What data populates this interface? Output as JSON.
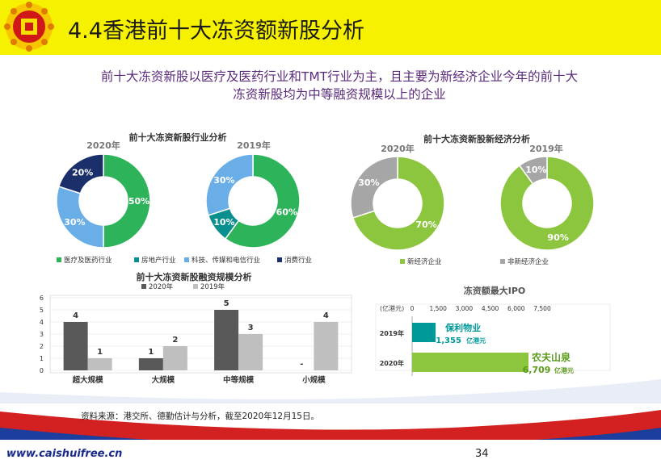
{
  "slide": {
    "title": "4.4香港前十大冻资额新股分析",
    "subtitle_line1": "前十大冻资新股以医疗及医药行业和TMT行业为主，且主要为新经济企业今年的前十大",
    "subtitle_line2": "冻资新股均为中等融资规模以上的企业",
    "source": "资料来源：港交所、德勤估计与分析，截至2020年12月15日。",
    "url": "www.caishuifree.cn",
    "page_number": "34"
  },
  "chart_data": [
    {
      "type": "pie",
      "title": "前十大冻资新股行业分析",
      "panels": [
        {
          "label": "2020年",
          "values": [
            50,
            0,
            30,
            20
          ],
          "data_labels": [
            "50%",
            "",
            "30%",
            "20%"
          ]
        },
        {
          "label": "2019年",
          "values": [
            60,
            10,
            30,
            0
          ],
          "data_labels": [
            "60%",
            "10%",
            "30%",
            ""
          ]
        }
      ],
      "categories": [
        "医疗及医药行业",
        "房地产行业",
        "科技、传媒和电信行业",
        "消费行业"
      ],
      "colors": [
        "#2db35a",
        "#0a8f8f",
        "#6aaee8",
        "#1b2f6a"
      ],
      "legend_position": "bottom"
    },
    {
      "type": "pie",
      "title": "前十大冻资新股新经济分析",
      "panels": [
        {
          "label": "2020年",
          "values": [
            70,
            30
          ],
          "data_labels": [
            "70%",
            "30%"
          ]
        },
        {
          "label": "2019年",
          "values": [
            90,
            10
          ],
          "data_labels": [
            "90%",
            "10%"
          ]
        }
      ],
      "categories": [
        "新经济企业",
        "非新经济企业"
      ],
      "colors": [
        "#8cc63f",
        "#a6a6a6"
      ],
      "legend_position": "bottom"
    },
    {
      "type": "bar",
      "title": "前十大冻资新股融资规模分析",
      "categories": [
        "超大规模",
        "大规模",
        "中等规模",
        "小规模"
      ],
      "series": [
        {
          "name": "2020年",
          "values": [
            4,
            1,
            5,
            0
          ],
          "data_labels": [
            "4",
            "1",
            "5",
            "-"
          ],
          "color": "#595959"
        },
        {
          "name": "2019年",
          "values": [
            1,
            2,
            3,
            4
          ],
          "data_labels": [
            "1",
            "2",
            "3",
            "4"
          ],
          "color": "#bfbfbf"
        }
      ],
      "y_ticks": [
        "0",
        "1",
        "2",
        "3",
        "4",
        "5",
        "6"
      ],
      "ylim": [
        0,
        6
      ],
      "legend_position": "top"
    },
    {
      "type": "bar",
      "orientation": "horizontal",
      "title": "冻资额最大IPO",
      "unit_label": "(亿港元)",
      "x_ticks": [
        "0",
        "1,500",
        "3,000",
        "4,500",
        "6,000",
        "7,500"
      ],
      "xlim": [
        0,
        7500
      ],
      "categories": [
        "2019年",
        "2020年"
      ],
      "values": [
        1355,
        6709
      ],
      "company_labels": [
        "保利物业",
        "农夫山泉"
      ],
      "value_labels": [
        "1,355",
        "6,709"
      ],
      "value_unit": "亿港元",
      "colors": [
        "#00999a",
        "#8cc63f"
      ],
      "label_colors": [
        "#00999a",
        "#5a9a1a"
      ]
    }
  ]
}
